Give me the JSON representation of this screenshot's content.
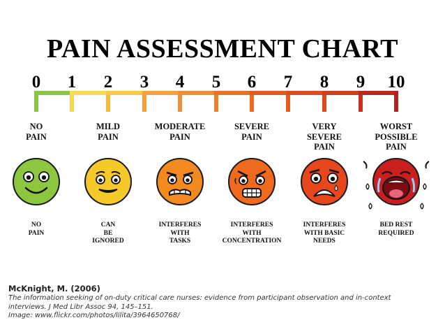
{
  "title": "PAIN ASSESSMENT CHART",
  "scale": [
    "0",
    "1",
    "2",
    "3",
    "4",
    "5",
    "6",
    "7",
    "8",
    "9",
    "10"
  ],
  "colors": {
    "segments": [
      "#8cc63f",
      "#f7dc4b",
      "#f9c93a",
      "#f5a238",
      "#f18c30",
      "#ef7025",
      "#ea5a1d",
      "#e54a1c",
      "#d73a1a",
      "#c0261c"
    ],
    "ticks": [
      "#8cc63f",
      "#f5d84a",
      "#f5b93c",
      "#f4a03a",
      "#f18f34",
      "#ef7e2c",
      "#ec6a24",
      "#e65a1f",
      "#de461c",
      "#c8301c",
      "#b51f1d"
    ],
    "faces": [
      "#8dc63f",
      "#f6c92a",
      "#f28a1f",
      "#ef6a1f",
      "#e8471d",
      "#c91f1f"
    ]
  },
  "levels": [
    {
      "label": "NO\nPAIN",
      "desc": "NO\nPAIN",
      "icon": "smiling-face-icon"
    },
    {
      "label": "MILD\nPAIN",
      "desc": "CAN\nBE\nIGNORED",
      "icon": "slight-smile-face-icon"
    },
    {
      "label": "MODERATE\nPAIN",
      "desc": "INTERFERES\nWITH\nTASKS",
      "icon": "grimacing-face-icon"
    },
    {
      "label": "SEVERE\nPAIN",
      "desc": "INTERFERES\nWITH\nCONCENTRATION",
      "icon": "gritting-teeth-face-icon"
    },
    {
      "label": "VERY\nSEVERE\nPAIN",
      "desc": "INTERFERES\nWITH BASIC\nNEEDS",
      "icon": "distressed-face-icon"
    },
    {
      "label": "WORST\nPOSSIBLE\nPAIN",
      "desc": "BED REST\nREQUIRED",
      "icon": "crying-face-icon"
    }
  ],
  "citation": {
    "author": "McKnight, M. (2006)",
    "line1": "The information seeking of on-duty critical care nurses: evidence from participant observation and in-context",
    "line2": "interviews. J Med Libr Assoc 94, 145–151.",
    "line3": "Image: www.flickr.com/photos/lilita/3964650768/"
  }
}
